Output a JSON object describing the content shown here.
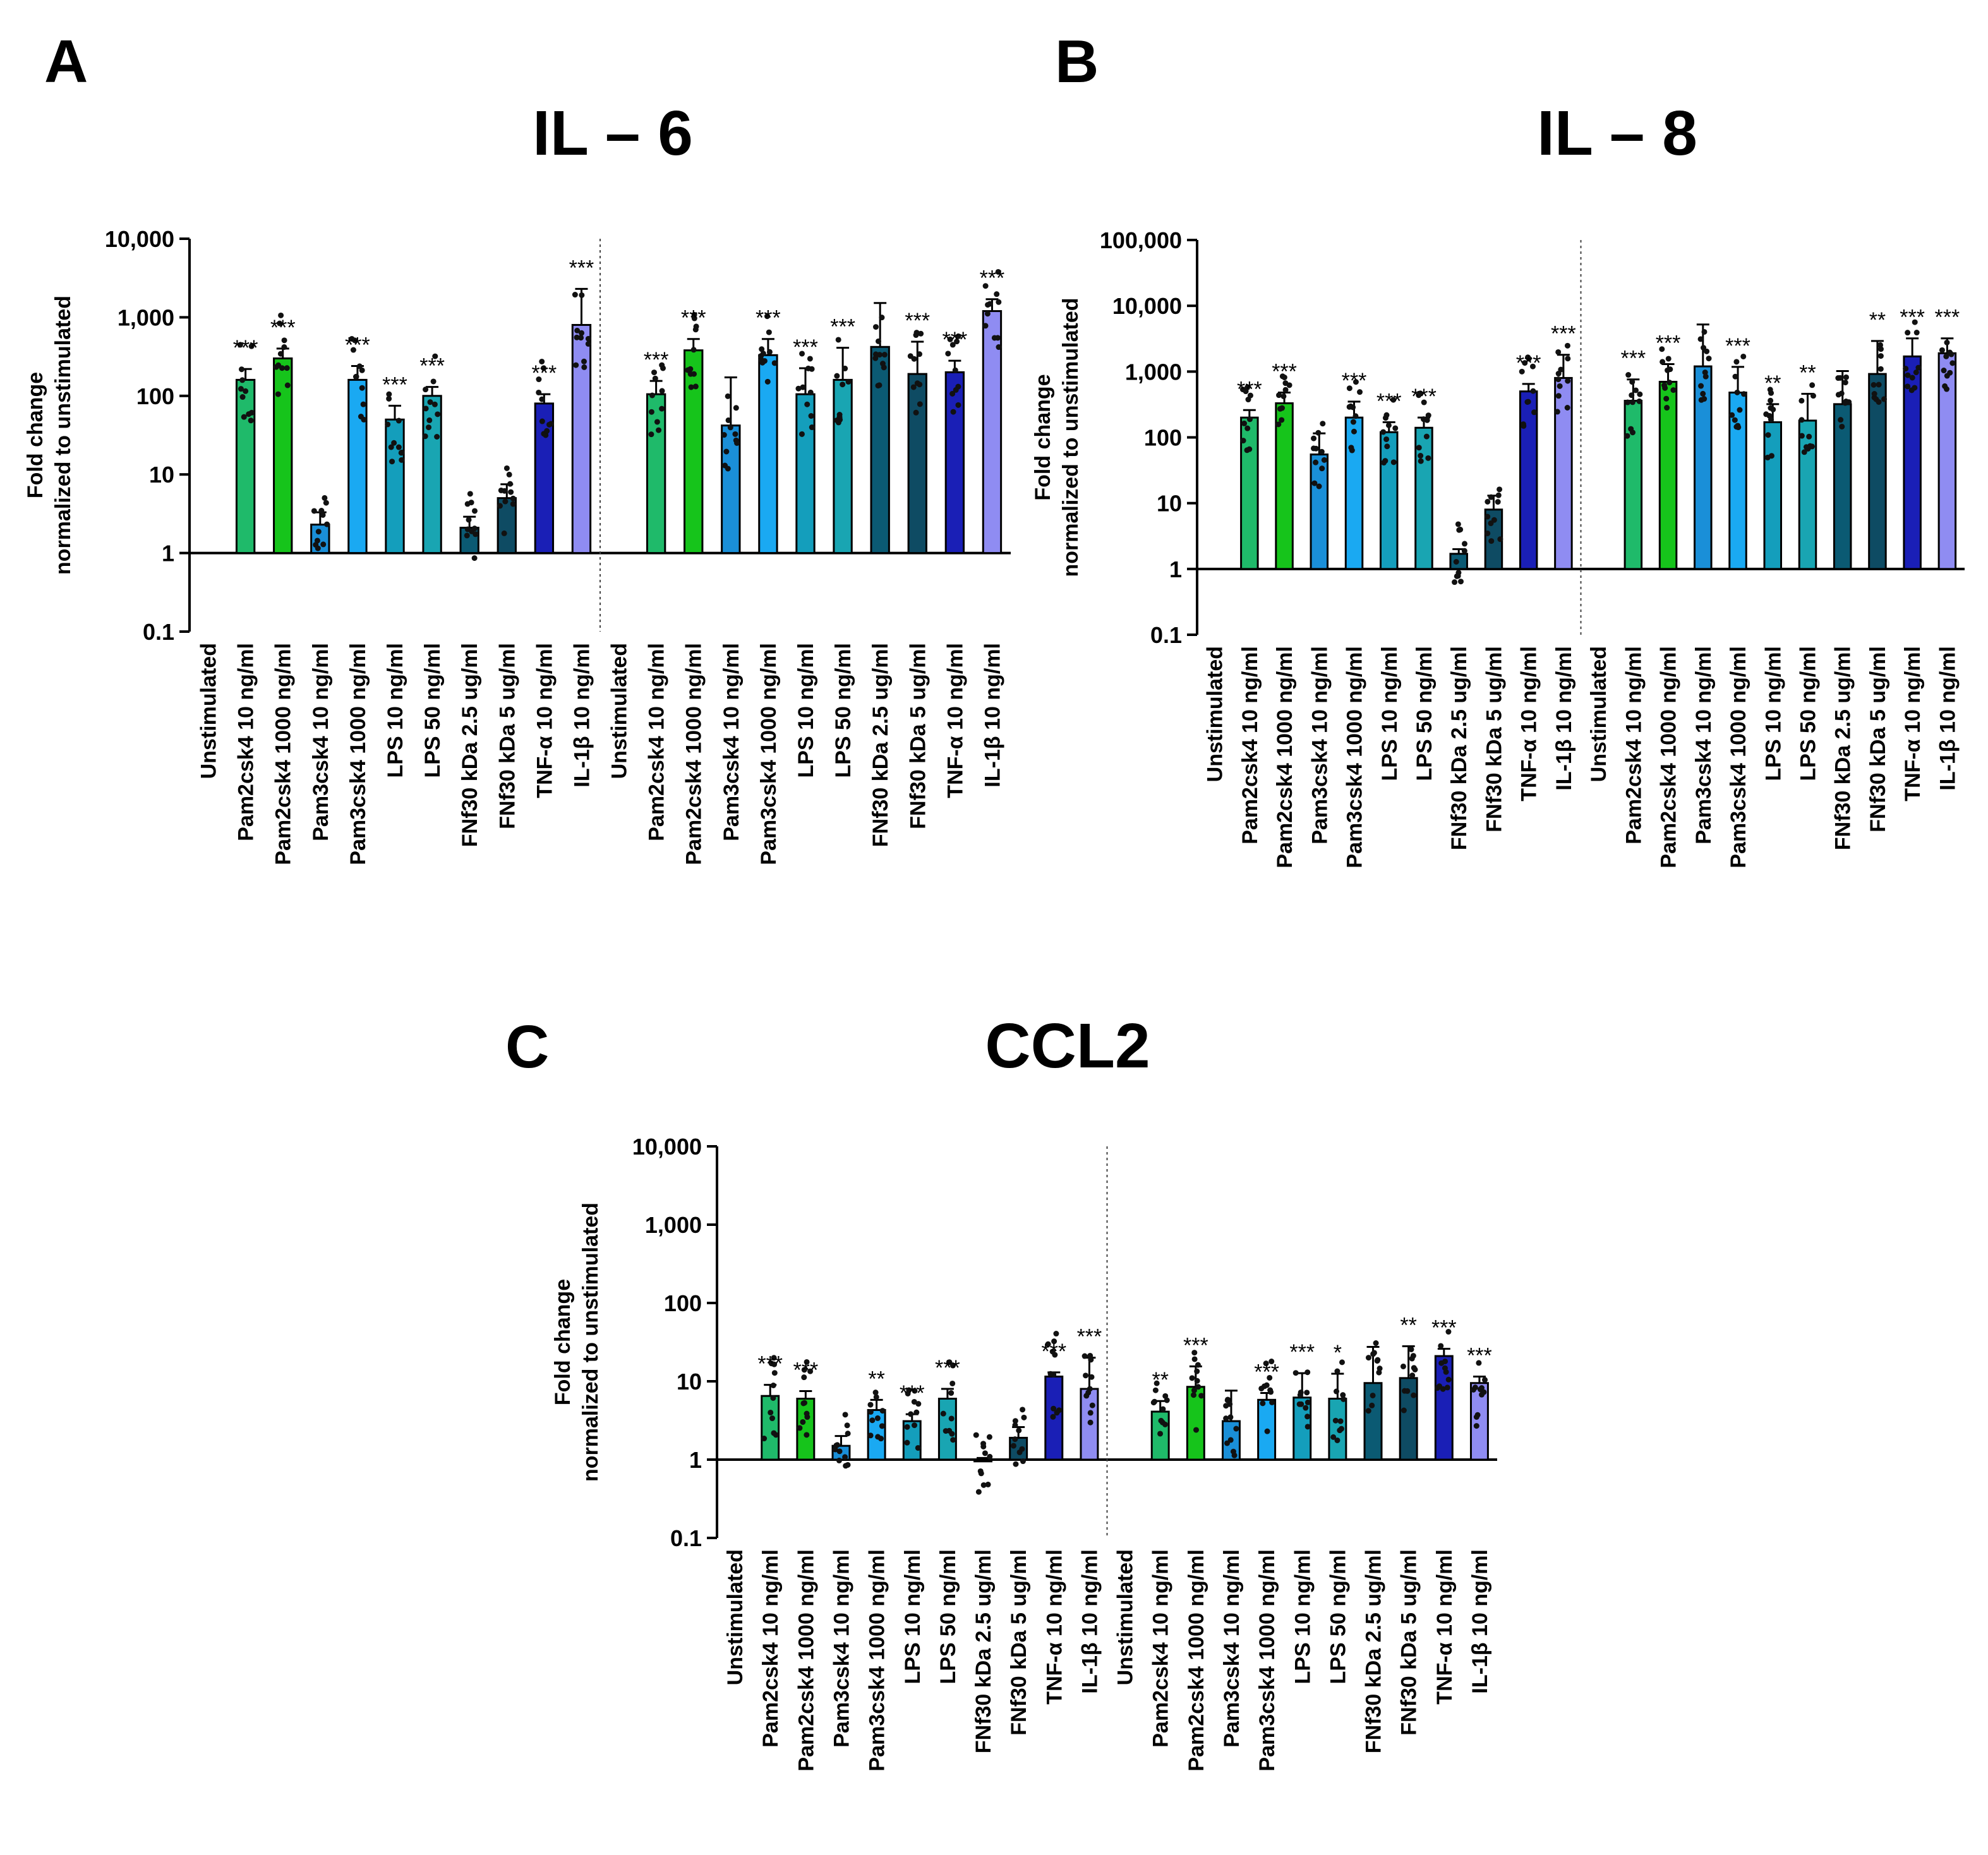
{
  "panels": [
    {
      "letter": "A",
      "title": "IL – 6"
    },
    {
      "letter": "B",
      "title": "IL – 8"
    },
    {
      "letter": "C",
      "title": "CCL2"
    }
  ],
  "chart_data": [
    {
      "type": "bar",
      "panel": "A",
      "title": "IL – 6",
      "ylabel": "Fold change normalized to unstimulated",
      "yscale": "log",
      "ylim": [
        0.1,
        10000
      ],
      "yticks": [
        "0.1",
        "1",
        "10",
        "100",
        "1,000",
        "10,000"
      ],
      "categories": [
        "Unstimulated",
        "Pam2csk4 10 ng/ml",
        "Pam2csk4 1000 ng/ml",
        "Pam3csk4 10 ng/ml",
        "Pam3csk4 1000 ng/ml",
        "LPS 10 ng/ml",
        "LPS 50 ng/ml",
        "FNf30 kDa 2.5 ug/ml",
        "FNf30 kDa 5 ug/ml",
        "TNF-α 10 ng/ml",
        "IL-1β 10 ng/ml",
        "Unstimulated",
        "Pam2csk4 10 ng/ml",
        "Pam2csk4 1000 ng/ml",
        "Pam3csk4 10 ng/ml",
        "Pam3csk4 1000 ng/ml",
        "LPS 10 ng/ml",
        "LPS 50 ng/ml",
        "FNf30 kDa 2.5 ug/ml",
        "FNf30 kDa 5 ug/ml",
        "TNF-α 10 ng/ml",
        "IL-1β 10 ng/ml"
      ],
      "values": [
        1,
        160,
        300,
        2.3,
        160,
        50,
        100,
        2.1,
        5,
        80,
        800,
        1,
        105,
        380,
        42,
        330,
        105,
        160,
        420,
        190,
        200,
        1200
      ],
      "errors": [
        0,
        60,
        100,
        1,
        80,
        25,
        30,
        0.8,
        2.5,
        25,
        1500,
        0,
        50,
        150,
        130,
        200,
        120,
        250,
        1100,
        300,
        80,
        500
      ],
      "significance": [
        "",
        "***",
        "***",
        "",
        "***",
        "***",
        "***",
        "",
        "",
        "***",
        "***",
        "",
        "***",
        "***",
        "",
        "***",
        "***",
        "***",
        "",
        "***",
        "***",
        "***"
      ]
    },
    {
      "type": "bar",
      "panel": "B",
      "title": "IL – 8",
      "ylabel": "Fold change normalized to unstimulated",
      "yscale": "log",
      "ylim": [
        0.1,
        100000
      ],
      "yticks": [
        "0.1",
        "1",
        "10",
        "100",
        "1,000",
        "10,000",
        "100,000"
      ],
      "categories": [
        "Unstimulated",
        "Pam2csk4 10 ng/ml",
        "Pam2csk4 1000 ng/ml",
        "Pam3csk4 10 ng/ml",
        "Pam3csk4 1000 ng/ml",
        "LPS 10 ng/ml",
        "LPS 50 ng/ml",
        "FNf30 kDa 2.5 ug/ml",
        "FNf30 kDa 5 ug/ml",
        "TNF-α 10 ng/ml",
        "IL-1β 10 ng/ml",
        "Unstimulated",
        "Pam2csk4 10 ng/ml",
        "Pam2csk4 1000 ng/ml",
        "Pam3csk4 10 ng/ml",
        "Pam3csk4 1000 ng/ml",
        "LPS 10 ng/ml",
        "LPS 50 ng/ml",
        "FNf30 kDa 2.5 ug/ml",
        "FNf30 kDa 5 ug/ml",
        "TNF-α 10 ng/ml",
        "IL-1β 10 ng/ml"
      ],
      "values": [
        1,
        200,
        330,
        55,
        200,
        120,
        140,
        1.7,
        8,
        500,
        800,
        1,
        360,
        700,
        1200,
        480,
        170,
        180,
        320,
        920,
        1700,
        1900
      ],
      "errors": [
        0,
        60,
        150,
        60,
        150,
        50,
        60,
        0.3,
        5,
        150,
        1000,
        0,
        400,
        600,
        4000,
        700,
        150,
        280,
        700,
        2000,
        1500,
        1300
      ],
      "significance": [
        "",
        "***",
        "***",
        "",
        "***",
        "***",
        "***",
        "",
        "",
        "***",
        "***",
        "",
        "***",
        "***",
        "",
        "***",
        "**",
        "**",
        "",
        "**",
        "***",
        "***"
      ]
    },
    {
      "type": "bar",
      "panel": "C",
      "title": "CCL2",
      "ylabel": "Fold change normalized to unstimulated",
      "yscale": "log",
      "ylim": [
        0.1,
        10000
      ],
      "yticks": [
        "0.1",
        "1",
        "10",
        "100",
        "1,000",
        "10,000"
      ],
      "categories": [
        "Unstimulated",
        "Pam2csk4 10 ng/ml",
        "Pam2csk4 1000 ng/ml",
        "Pam3csk4 10 ng/ml",
        "Pam3csk4 1000 ng/ml",
        "LPS 10 ng/ml",
        "LPS 50 ng/ml",
        "FNf30 kDa 2.5 ug/ml",
        "FNf30 kDa 5 ug/ml",
        "TNF-α 10 ng/ml",
        "IL-1β 10 ng/ml",
        "Unstimulated",
        "Pam2csk4 10 ng/ml",
        "Pam2csk4 1000 ng/ml",
        "Pam3csk4 10 ng/ml",
        "Pam3csk4 1000 ng/ml",
        "LPS 10 ng/ml",
        "LPS 50 ng/ml",
        "FNf30 kDa 2.5 ug/ml",
        "FNf30 kDa 5 ug/ml",
        "TNF-α 10 ng/ml",
        "IL-1β 10 ng/ml"
      ],
      "values": [
        1,
        6.5,
        6,
        1.5,
        4.3,
        3.1,
        6,
        0.95,
        1.9,
        11.5,
        8,
        1,
        4.1,
        8.5,
        3.1,
        5.8,
        6.2,
        6,
        9.5,
        11,
        21,
        9.5
      ],
      "errors": [
        0,
        2.5,
        1.5,
        0.5,
        1.5,
        0.7,
        2,
        0.1,
        0.7,
        1.5,
        12,
        0,
        1.5,
        7,
        4.5,
        1.3,
        6.5,
        6.5,
        18,
        17,
        5,
        2
      ],
      "significance": [
        "",
        "***",
        "***",
        "",
        "**",
        "***",
        "***",
        "",
        "",
        "***",
        "***",
        "",
        "**",
        "***",
        "",
        "***",
        "***",
        "*",
        "",
        "**",
        "***",
        "***"
      ]
    }
  ]
}
